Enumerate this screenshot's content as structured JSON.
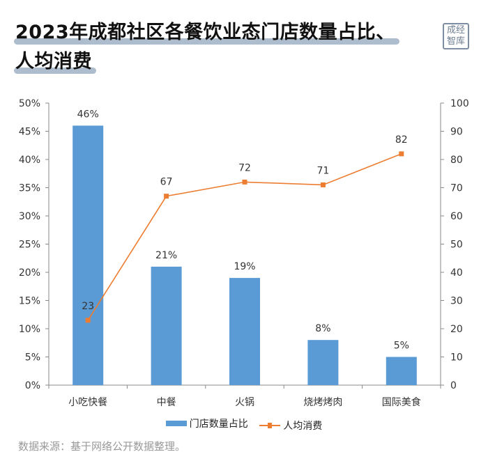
{
  "title": {
    "line1": "2023年成都社区各餐饮业态门店数量占比、",
    "line2": "人均消费"
  },
  "logo": {
    "line1": "成经",
    "line2": "智库"
  },
  "source": "数据来源：基于网络公开数据整理。",
  "colors": {
    "bar": "#5b9bd5",
    "line": "#ed7d31",
    "grid": "#cfcfcf",
    "axis": "#888888"
  },
  "chart_data": {
    "type": "bar",
    "categories": [
      "小吃快餐",
      "中餐",
      "火锅",
      "烧烤烤肉",
      "国际美食"
    ],
    "series": [
      {
        "name": "门店数量占比",
        "type": "bar",
        "axis": "left",
        "values": [
          46,
          21,
          19,
          8,
          5
        ],
        "labels": [
          "46%",
          "21%",
          "19%",
          "8%",
          "5%"
        ]
      },
      {
        "name": "人均消费",
        "type": "line",
        "axis": "right",
        "values": [
          23,
          67,
          72,
          71,
          82
        ],
        "labels": [
          "23",
          "67",
          "72",
          "71",
          "82"
        ]
      }
    ],
    "y_left": {
      "ylim": [
        0,
        50
      ],
      "ticks": [
        "0%",
        "5%",
        "10%",
        "15%",
        "20%",
        "25%",
        "30%",
        "35%",
        "40%",
        "45%",
        "50%"
      ]
    },
    "y_right": {
      "ylim": [
        0,
        100
      ],
      "ticks": [
        "0",
        "10",
        "20",
        "30",
        "40",
        "50",
        "60",
        "70",
        "80",
        "90",
        "100"
      ]
    },
    "grid": false,
    "legend": "bottom"
  }
}
